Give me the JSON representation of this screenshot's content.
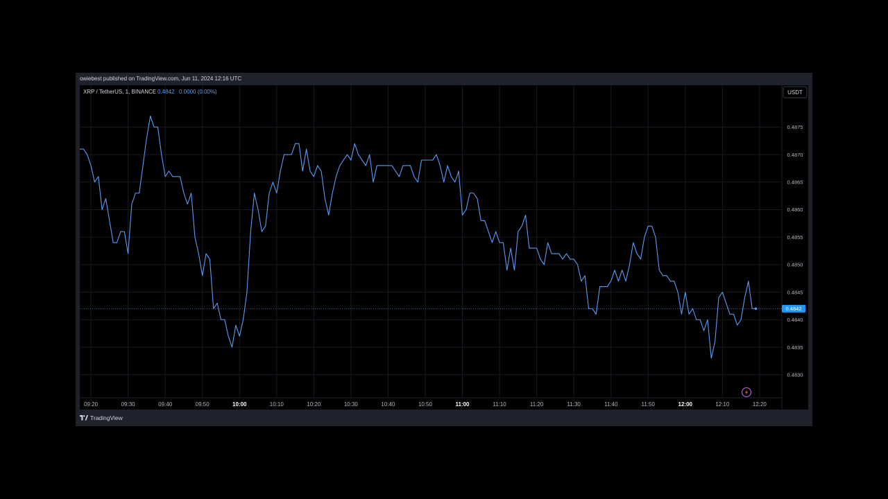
{
  "published": "owiebest published on TradingView.com, Jun 11, 2024 12:16 UTC",
  "brand": "TradingView",
  "symbol": {
    "name": "XRP / TetherUS, 1, BINANCE",
    "price": "0.4842",
    "change": "0.0000 (0.00%)"
  },
  "currency_button": "USDT",
  "current_price_label": "0.4842",
  "colors": {
    "line": "#5b9cf6",
    "background": "#000000",
    "frame": "#1e222d",
    "grid": "#161a22",
    "price_tag": "#2196f3"
  },
  "icons": {
    "logo": "tradingview-logo-icon",
    "lightning": "lightning-icon"
  },
  "chart_data": {
    "type": "line",
    "x_unit": "minutes (time of day, 1-minute bars, 2024-06-11)",
    "x_ticks": [
      {
        "t": "09:20",
        "bold": false
      },
      {
        "t": "09:30",
        "bold": false
      },
      {
        "t": "09:40",
        "bold": false
      },
      {
        "t": "09:50",
        "bold": false
      },
      {
        "t": "10:00",
        "bold": true
      },
      {
        "t": "10:10",
        "bold": false
      },
      {
        "t": "10:20",
        "bold": false
      },
      {
        "t": "10:30",
        "bold": false
      },
      {
        "t": "10:40",
        "bold": false
      },
      {
        "t": "10:50",
        "bold": false
      },
      {
        "t": "11:00",
        "bold": true
      },
      {
        "t": "11:10",
        "bold": false
      },
      {
        "t": "11:20",
        "bold": false
      },
      {
        "t": "11:30",
        "bold": false
      },
      {
        "t": "11:40",
        "bold": false
      },
      {
        "t": "11:50",
        "bold": false
      },
      {
        "t": "12:00",
        "bold": true
      },
      {
        "t": "12:10",
        "bold": false
      },
      {
        "t": "12:20",
        "bold": false
      }
    ],
    "y_ticks": [
      "0.4830",
      "0.4835",
      "0.4840",
      "0.4845",
      "0.4850",
      "0.4855",
      "0.4860",
      "0.4865",
      "0.4870",
      "0.4875"
    ],
    "ylim": [
      0.48258,
      0.48826
    ],
    "xlim": [
      "09:17",
      "12:26"
    ],
    "grid": true,
    "current_price": 0.4842,
    "series": [
      {
        "start_time": "09:17",
        "step_minutes": 1,
        "values": [
          0.4871,
          0.4871,
          0.487,
          0.4868,
          0.4865,
          0.4866,
          0.486,
          0.4862,
          0.4858,
          0.4854,
          0.4854,
          0.4856,
          0.4856,
          0.4852,
          0.4861,
          0.4863,
          0.4863,
          0.4868,
          0.4873,
          0.4877,
          0.4875,
          0.4875,
          0.487,
          0.4866,
          0.4867,
          0.4866,
          0.4866,
          0.4866,
          0.4863,
          0.4861,
          0.4863,
          0.4855,
          0.4852,
          0.4848,
          0.4852,
          0.4851,
          0.4842,
          0.4843,
          0.484,
          0.484,
          0.4837,
          0.4835,
          0.4839,
          0.4837,
          0.484,
          0.4845,
          0.4856,
          0.4863,
          0.486,
          0.4856,
          0.4857,
          0.4863,
          0.4865,
          0.4863,
          0.4867,
          0.487,
          0.487,
          0.487,
          0.4872,
          0.4872,
          0.4867,
          0.4871,
          0.4867,
          0.4866,
          0.4868,
          0.4867,
          0.4862,
          0.4859,
          0.4863,
          0.4866,
          0.4868,
          0.4869,
          0.487,
          0.4869,
          0.4872,
          0.487,
          0.4869,
          0.4868,
          0.487,
          0.4865,
          0.4868,
          0.4868,
          0.4868,
          0.4868,
          0.4868,
          0.4867,
          0.4866,
          0.4868,
          0.4868,
          0.4868,
          0.4866,
          0.4865,
          0.4869,
          0.4869,
          0.4869,
          0.4869,
          0.487,
          0.4868,
          0.4865,
          0.4868,
          0.4866,
          0.4865,
          0.4867,
          0.4859,
          0.486,
          0.4863,
          0.4863,
          0.4862,
          0.4858,
          0.4858,
          0.4856,
          0.4854,
          0.4856,
          0.4854,
          0.4854,
          0.4849,
          0.4853,
          0.4849,
          0.4856,
          0.4857,
          0.4859,
          0.4853,
          0.4853,
          0.4853,
          0.4851,
          0.485,
          0.4854,
          0.4852,
          0.4852,
          0.4852,
          0.4851,
          0.4852,
          0.4851,
          0.4851,
          0.485,
          0.4847,
          0.4848,
          0.4842,
          0.4842,
          0.4841,
          0.4846,
          0.4846,
          0.4846,
          0.4847,
          0.4849,
          0.4847,
          0.4849,
          0.4847,
          0.485,
          0.4854,
          0.4852,
          0.4851,
          0.4855,
          0.4857,
          0.4857,
          0.4855,
          0.4849,
          0.4848,
          0.4848,
          0.4847,
          0.4847,
          0.4845,
          0.4841,
          0.4845,
          0.4841,
          0.4842,
          0.484,
          0.484,
          0.4838,
          0.484,
          0.4833,
          0.4836,
          0.4844,
          0.4845,
          0.4843,
          0.4841,
          0.4841,
          0.4839,
          0.484,
          0.4844,
          0.4847,
          0.4842,
          0.4842
        ]
      }
    ]
  }
}
